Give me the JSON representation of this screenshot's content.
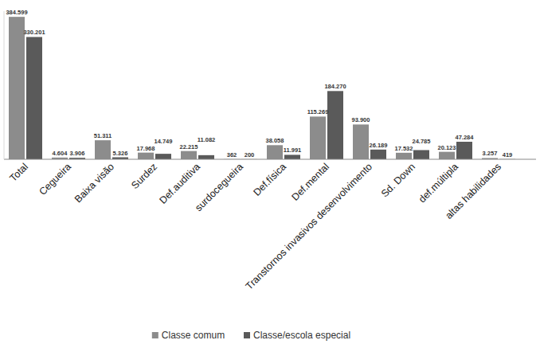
{
  "chart_data": {
    "type": "bar",
    "categories": [
      "Total",
      "Cegueira",
      "Baixa visão",
      "Surdez",
      "Def.auditiva",
      "surdocegueira",
      "Def.física",
      "Def.mental",
      "Transtornos invasivos desenvolvimento",
      "Sd. Down",
      "def.múltipla",
      "altas habilidades"
    ],
    "series": [
      {
        "name": "Classe comum",
        "color": "#8c8c8c",
        "values": [
          384599,
          4604,
          51311,
          17968,
          22215,
          362,
          38058,
          115269,
          93900,
          17532,
          20123,
          3257
        ],
        "value_labels": [
          "384.599",
          "4.604",
          "51.311",
          "17.968",
          "22.215",
          "362",
          "38.058",
          "115.269",
          "93.900",
          "17.532",
          "20.123",
          "3.257"
        ]
      },
      {
        "name": "Classe/escola especial",
        "color": "#5a5a5a",
        "values": [
          330201,
          3906,
          5326,
          14749,
          11082,
          200,
          11991,
          184270,
          26189,
          24785,
          47284,
          419
        ],
        "value_labels": [
          "330.201",
          "3.906",
          "5.326",
          "14.749",
          "11.082",
          "200",
          "11.991",
          "184.270",
          "26.189",
          "24.785",
          "47.284",
          "419"
        ]
      }
    ],
    "ylim": [
      0,
      400000
    ],
    "data_labels": true,
    "tick_labels": "x",
    "grid": false,
    "legend": "bottom"
  }
}
